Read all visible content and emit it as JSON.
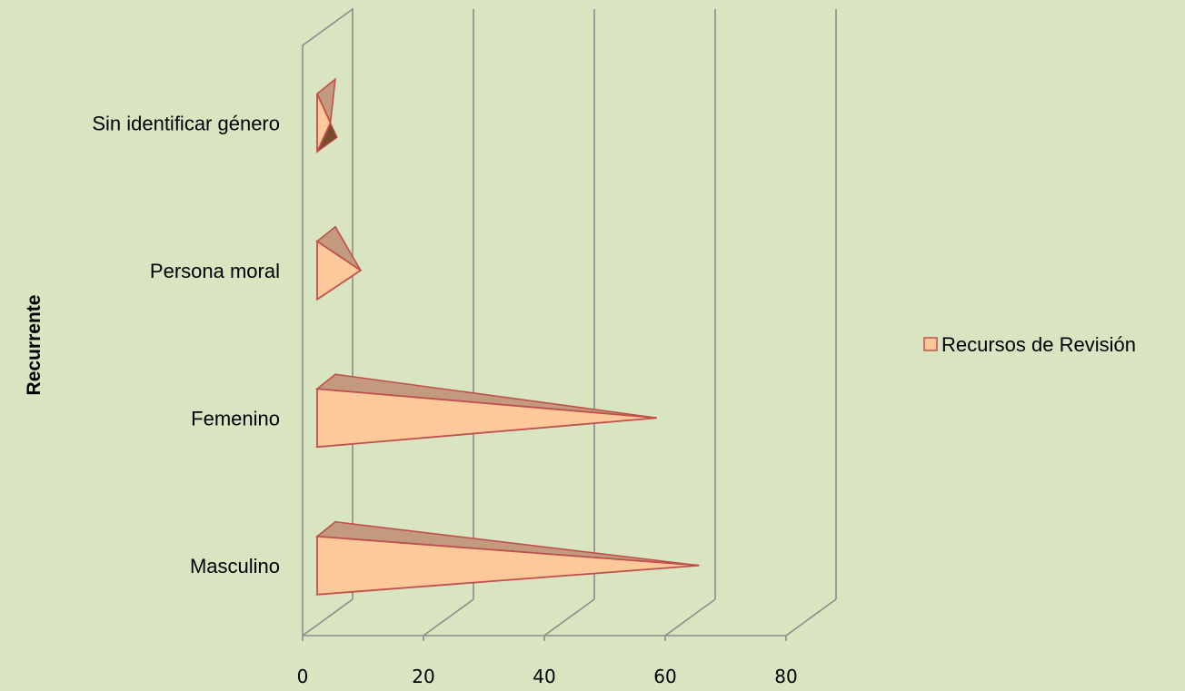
{
  "chart_data": {
    "type": "bar",
    "orientation": "horizontal",
    "shape": "3d-pyramid",
    "categories": [
      "Masculino",
      "Femenino",
      "Persona moral",
      "Sin identificar género"
    ],
    "series": [
      {
        "name": "Recursos de Revisión",
        "values": [
          65,
          58,
          9,
          4
        ]
      }
    ],
    "xlim": [
      0,
      80
    ],
    "xticks": [
      0,
      20,
      40,
      60,
      80
    ],
    "xlabel": "",
    "ylabel": "Recurrente",
    "title": "",
    "grid": true,
    "legend_position": "right",
    "colors": {
      "fill": "#fdc99b",
      "edge": "#c0504d",
      "background": "#d9e4c0",
      "grid": "#8c8c8c"
    }
  }
}
